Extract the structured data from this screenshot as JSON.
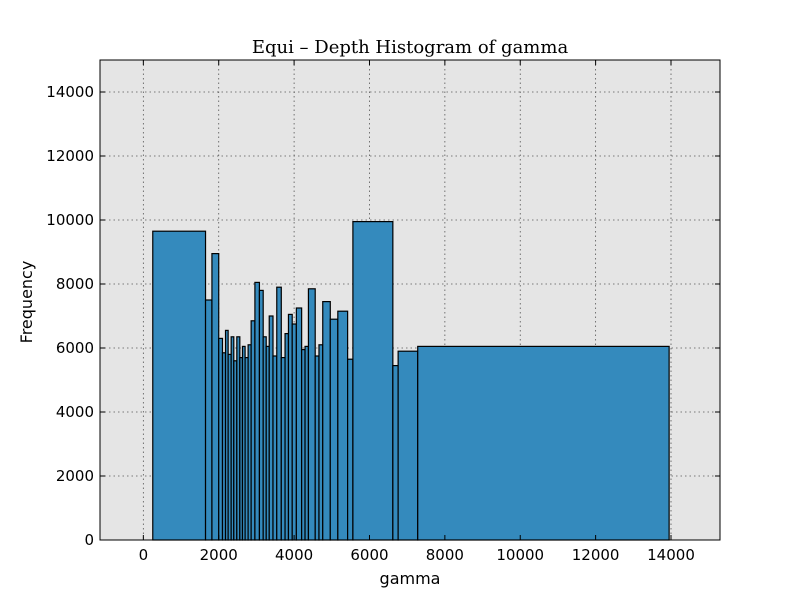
{
  "chart_data": {
    "type": "bar",
    "title": "Equi – Depth Histogram of gamma",
    "xlabel": "gamma",
    "ylabel": "Frequency",
    "xlim": [
      -1150,
      15300
    ],
    "ylim": [
      0,
      15000
    ],
    "xticks": [
      0,
      2000,
      4000,
      6000,
      8000,
      10000,
      12000,
      14000
    ],
    "yticks": [
      0,
      2000,
      4000,
      6000,
      8000,
      10000,
      12000,
      14000
    ],
    "grid": true,
    "bins": [
      {
        "x0": 250,
        "x1": 1650,
        "value": 9650
      },
      {
        "x0": 1650,
        "x1": 1820,
        "value": 7500
      },
      {
        "x0": 1820,
        "x1": 2000,
        "value": 8950
      },
      {
        "x0": 2000,
        "x1": 2100,
        "value": 6300
      },
      {
        "x0": 2100,
        "x1": 2180,
        "value": 5850
      },
      {
        "x0": 2180,
        "x1": 2250,
        "value": 6550
      },
      {
        "x0": 2250,
        "x1": 2330,
        "value": 5800
      },
      {
        "x0": 2330,
        "x1": 2400,
        "value": 6350
      },
      {
        "x0": 2400,
        "x1": 2480,
        "value": 5600
      },
      {
        "x0": 2480,
        "x1": 2560,
        "value": 6350
      },
      {
        "x0": 2560,
        "x1": 2630,
        "value": 5700
      },
      {
        "x0": 2630,
        "x1": 2700,
        "value": 6050
      },
      {
        "x0": 2700,
        "x1": 2780,
        "value": 5700
      },
      {
        "x0": 2780,
        "x1": 2860,
        "value": 6100
      },
      {
        "x0": 2860,
        "x1": 2960,
        "value": 6850
      },
      {
        "x0": 2960,
        "x1": 3080,
        "value": 8050
      },
      {
        "x0": 3080,
        "x1": 3180,
        "value": 7800
      },
      {
        "x0": 3180,
        "x1": 3260,
        "value": 6350
      },
      {
        "x0": 3260,
        "x1": 3340,
        "value": 6050
      },
      {
        "x0": 3340,
        "x1": 3440,
        "value": 7000
      },
      {
        "x0": 3440,
        "x1": 3540,
        "value": 5750
      },
      {
        "x0": 3540,
        "x1": 3660,
        "value": 7900
      },
      {
        "x0": 3660,
        "x1": 3760,
        "value": 5700
      },
      {
        "x0": 3760,
        "x1": 3850,
        "value": 6450
      },
      {
        "x0": 3850,
        "x1": 3950,
        "value": 7050
      },
      {
        "x0": 3950,
        "x1": 4060,
        "value": 6750
      },
      {
        "x0": 4060,
        "x1": 4200,
        "value": 7250
      },
      {
        "x0": 4200,
        "x1": 4290,
        "value": 5950
      },
      {
        "x0": 4290,
        "x1": 4380,
        "value": 6050
      },
      {
        "x0": 4380,
        "x1": 4560,
        "value": 7850
      },
      {
        "x0": 4560,
        "x1": 4660,
        "value": 5750
      },
      {
        "x0": 4660,
        "x1": 4760,
        "value": 6100
      },
      {
        "x0": 4760,
        "x1": 4960,
        "value": 7450
      },
      {
        "x0": 4960,
        "x1": 5160,
        "value": 6900
      },
      {
        "x0": 5160,
        "x1": 5420,
        "value": 7150
      },
      {
        "x0": 5420,
        "x1": 5560,
        "value": 5650
      },
      {
        "x0": 5560,
        "x1": 6620,
        "value": 9950
      },
      {
        "x0": 6620,
        "x1": 6760,
        "value": 5450
      },
      {
        "x0": 6760,
        "x1": 7280,
        "value": 5900
      },
      {
        "x0": 7280,
        "x1": 13950,
        "value": 6050
      }
    ]
  },
  "colors": {
    "bar_fill": "#348abd",
    "plot_background": "#e5e5e5"
  }
}
